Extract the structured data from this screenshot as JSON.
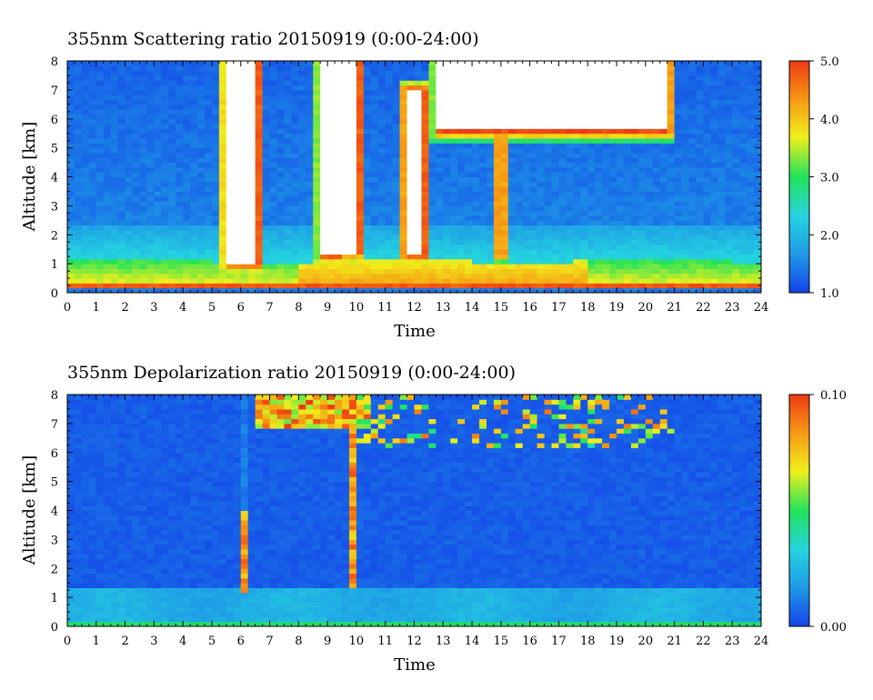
{
  "chart_data": [
    {
      "type": "heatmap",
      "title": "355nm Scattering ratio  20150919 (0:00-24:00)",
      "xlabel": "Time",
      "ylabel": "Altitude [km]",
      "xlim": [
        0,
        24
      ],
      "ylim": [
        0,
        8
      ],
      "xticks": [
        "0",
        "1",
        "2",
        "3",
        "4",
        "5",
        "6",
        "7",
        "8",
        "9",
        "10",
        "11",
        "12",
        "13",
        "14",
        "15",
        "16",
        "17",
        "18",
        "19",
        "20",
        "21",
        "22",
        "23",
        "24"
      ],
      "yticks": [
        "0",
        "1",
        "2",
        "3",
        "4",
        "5",
        "6",
        "7",
        "8"
      ],
      "colorbar": {
        "range": [
          1.0,
          5.0
        ],
        "labels": [
          "5.0",
          "4.0",
          "3.0",
          "2.0",
          "1.0"
        ]
      },
      "colormap": [
        "#1444e8",
        "#1e9be6",
        "#25d4e0",
        "#21e35a",
        "#f0ef1c",
        "#f79b14",
        "#ee3a14"
      ],
      "features": {
        "boundary_layer_top_km": 1.1,
        "saturated_clouds": [
          {
            "t0": 5.5,
            "t1": 6.6,
            "z0": 1.0,
            "z1": 8.0
          },
          {
            "t0": 8.8,
            "t1": 9.5,
            "z0": 1.3,
            "z1": 8.0
          },
          {
            "t0": 9.6,
            "t1": 10.1,
            "z0": 1.4,
            "z1": 8.0
          },
          {
            "t0": 11.7,
            "t1": 11.95,
            "z0": 1.3,
            "z1": 7.0
          },
          {
            "t0": 12.05,
            "t1": 12.35,
            "z0": 1.3,
            "z1": 7.0
          },
          {
            "t0": 14.95,
            "t1": 15.05,
            "z0": 1.4,
            "z1": 6.5
          },
          {
            "t0": 12.8,
            "t1": 20.8,
            "z0": 5.6,
            "z1": 8.0
          }
        ]
      }
    },
    {
      "type": "heatmap",
      "title": "355nm Depolarization ratio  20150919 (0:00-24:00)",
      "xlabel": "Time",
      "ylabel": "Altitude [km]",
      "xlim": [
        0,
        24
      ],
      "ylim": [
        0,
        8
      ],
      "xticks": [
        "0",
        "1",
        "2",
        "3",
        "4",
        "5",
        "6",
        "7",
        "8",
        "9",
        "10",
        "11",
        "12",
        "13",
        "14",
        "15",
        "16",
        "17",
        "18",
        "19",
        "20",
        "21",
        "22",
        "23",
        "24"
      ],
      "yticks": [
        "0",
        "1",
        "2",
        "3",
        "4",
        "5",
        "6",
        "7",
        "8"
      ],
      "colorbar": {
        "range": [
          0.0,
          0.1
        ],
        "labels": [
          "0.10",
          "0.00"
        ]
      },
      "colormap": [
        "#1444e8",
        "#1e9be6",
        "#25d4e0",
        "#21e35a",
        "#f0ef1c",
        "#f79b14",
        "#ee3a14"
      ],
      "features": {
        "background_value": 0.022,
        "high_depol_columns": [
          {
            "t0": 5.95,
            "t1": 6.3,
            "z0": 1.2,
            "z1": 4.0
          },
          {
            "t0": 9.7,
            "t1": 9.9,
            "z0": 1.4,
            "z1": 6.8
          }
        ],
        "ice_cloud_top_km": 8.0
      }
    }
  ]
}
